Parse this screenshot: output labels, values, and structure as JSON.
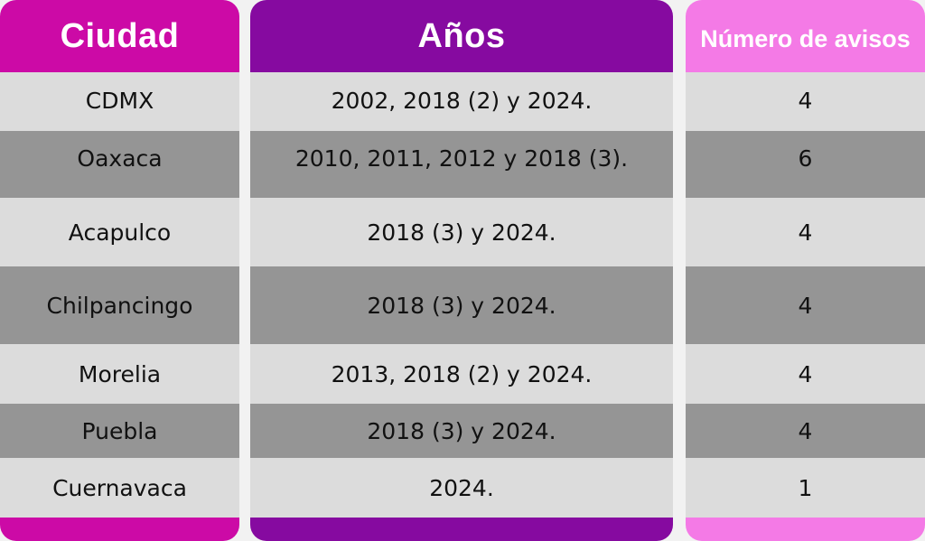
{
  "colors": {
    "ciudad_accent": "#cc0aa6",
    "anos_accent": "#860aa0",
    "avisos_accent": "#f47ae6",
    "row_light": "#dcdcdc",
    "row_dark": "#959595"
  },
  "headers": {
    "ciudad": "Ciudad",
    "anos": "Años",
    "avisos": "Número de avisos"
  },
  "rows": [
    {
      "ciudad": "CDMX",
      "anos": "2002, 2018 (2) y 2024.",
      "avisos": "4"
    },
    {
      "ciudad": "Oaxaca",
      "anos": "2010, 2011, 2012 y 2018 (3).",
      "avisos": "6"
    },
    {
      "ciudad": "Acapulco",
      "anos": "2018 (3) y 2024.",
      "avisos": "4"
    },
    {
      "ciudad": "Chilpancingo",
      "anos": "2018 (3) y 2024.",
      "avisos": "4"
    },
    {
      "ciudad": "Morelia",
      "anos": "2013, 2018 (2) y 2024.",
      "avisos": "4"
    },
    {
      "ciudad": "Puebla",
      "anos": "2018 (3) y 2024.",
      "avisos": "4"
    },
    {
      "ciudad": "Cuernavaca",
      "anos": "2024.",
      "avisos": "1"
    }
  ]
}
